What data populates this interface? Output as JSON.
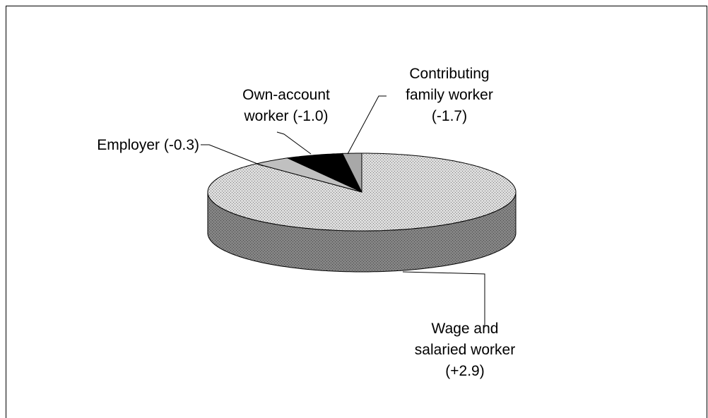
{
  "chart_data": {
    "type": "pie3d",
    "categories": [
      "Wage and\nsalaried worker\n(+2.9)",
      "Employer (-0.3)",
      "Own-account\nworker (-1.0)",
      "Contributing\nfamily worker\n(-1.7)"
    ],
    "values": [
      88,
      4,
      6,
      2
    ],
    "colors": [
      "#dcdcdc",
      "#c0c0c0",
      "#000000",
      "#a8a8a8"
    ]
  }
}
